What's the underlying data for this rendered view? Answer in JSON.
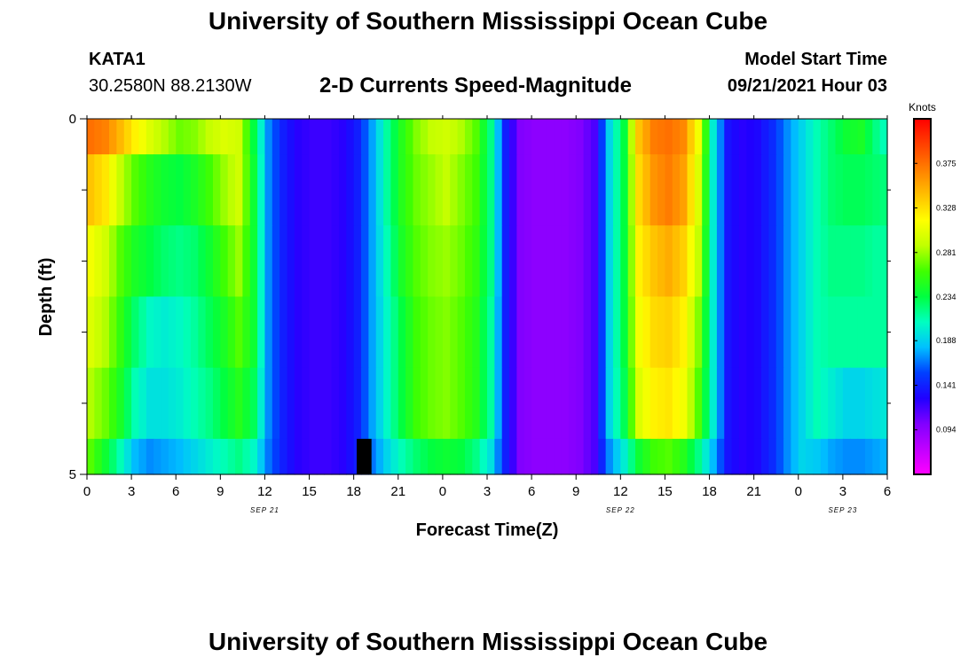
{
  "page": {
    "title_top": "University of Southern Mississippi Ocean Cube",
    "title_bottom": "University of Southern Mississippi Ocean Cube",
    "station": "KATA1",
    "location": "30.2580N  88.2130W",
    "model_start_label": "Model Start Time",
    "model_start_value": "09/21/2021 Hour 03"
  },
  "chart_data": {
    "type": "heatmap",
    "title": "2-D Currents Speed-Magnitude",
    "xlabel": "Forecast Time(Z)",
    "ylabel": "Depth (ft)",
    "colorbar_label": "Knots",
    "x_range_hours": [
      0,
      54
    ],
    "y_range": [
      0,
      5
    ],
    "y_tick_labels": [
      {
        "value": 0,
        "label": "0"
      },
      {
        "value": 5,
        "label": "5"
      }
    ],
    "y_minor_ticks": [
      1,
      2,
      3,
      4
    ],
    "x_tick_labels": [
      "0",
      "3",
      "6",
      "9",
      "12",
      "15",
      "18",
      "21",
      "0",
      "3",
      "6",
      "9",
      "12",
      "15",
      "18",
      "21",
      "0",
      "3",
      "6"
    ],
    "date_labels": [
      {
        "hour": 12,
        "label": "SEP 21"
      },
      {
        "hour": 36,
        "label": "SEP 22"
      },
      {
        "hour": 51,
        "label": "SEP 23"
      }
    ],
    "depth_bands": [
      [
        0,
        0.5
      ],
      [
        0.5,
        1.5
      ],
      [
        1.5,
        2.5
      ],
      [
        2.5,
        3.5
      ],
      [
        3.5,
        4.5
      ],
      [
        4.5,
        5
      ]
    ],
    "hours": [
      0,
      1,
      2,
      3,
      4,
      5,
      6,
      7,
      8,
      9,
      10,
      11,
      12,
      13,
      14,
      15,
      16,
      17,
      18,
      19,
      20,
      21,
      22,
      23,
      24,
      25,
      26,
      27,
      28,
      29,
      30,
      31,
      32,
      33,
      34,
      35,
      36,
      37,
      38,
      39,
      40,
      41,
      42,
      43,
      44,
      45,
      46,
      47,
      48,
      49,
      50,
      51,
      52,
      53,
      54
    ],
    "speed_knots_by_band": [
      [
        0.375,
        0.368,
        0.345,
        0.32,
        0.3,
        0.285,
        0.27,
        0.275,
        0.29,
        0.3,
        0.295,
        0.235,
        0.17,
        0.14,
        0.125,
        0.12,
        0.12,
        0.125,
        0.14,
        0.175,
        0.215,
        0.25,
        0.275,
        0.29,
        0.295,
        0.285,
        0.265,
        0.22,
        0.14,
        0.1,
        0.095,
        0.095,
        0.095,
        0.1,
        0.115,
        0.19,
        0.235,
        0.34,
        0.37,
        0.375,
        0.365,
        0.31,
        0.2,
        0.135,
        0.125,
        0.13,
        0.145,
        0.17,
        0.19,
        0.21,
        0.225,
        0.24,
        0.245,
        0.22,
        0.2
      ],
      [
        0.34,
        0.325,
        0.29,
        0.265,
        0.25,
        0.24,
        0.235,
        0.245,
        0.26,
        0.28,
        0.295,
        0.24,
        0.17,
        0.14,
        0.125,
        0.12,
        0.12,
        0.125,
        0.14,
        0.175,
        0.215,
        0.25,
        0.27,
        0.28,
        0.29,
        0.275,
        0.26,
        0.22,
        0.14,
        0.1,
        0.095,
        0.095,
        0.095,
        0.1,
        0.115,
        0.19,
        0.235,
        0.33,
        0.36,
        0.37,
        0.355,
        0.3,
        0.2,
        0.135,
        0.125,
        0.13,
        0.145,
        0.17,
        0.19,
        0.21,
        0.225,
        0.23,
        0.23,
        0.225,
        0.22
      ],
      [
        0.31,
        0.295,
        0.265,
        0.245,
        0.235,
        0.225,
        0.22,
        0.225,
        0.24,
        0.26,
        0.28,
        0.24,
        0.17,
        0.14,
        0.125,
        0.12,
        0.12,
        0.125,
        0.14,
        0.175,
        0.21,
        0.245,
        0.265,
        0.275,
        0.28,
        0.27,
        0.255,
        0.22,
        0.14,
        0.1,
        0.095,
        0.095,
        0.095,
        0.1,
        0.115,
        0.19,
        0.235,
        0.32,
        0.34,
        0.35,
        0.335,
        0.29,
        0.2,
        0.135,
        0.125,
        0.13,
        0.145,
        0.17,
        0.19,
        0.21,
        0.22,
        0.22,
        0.22,
        0.215,
        0.215
      ],
      [
        0.3,
        0.285,
        0.255,
        0.225,
        0.205,
        0.2,
        0.205,
        0.215,
        0.23,
        0.245,
        0.265,
        0.24,
        0.17,
        0.14,
        0.125,
        0.12,
        0.12,
        0.125,
        0.14,
        0.175,
        0.205,
        0.235,
        0.26,
        0.27,
        0.275,
        0.265,
        0.25,
        0.215,
        0.14,
        0.1,
        0.095,
        0.095,
        0.095,
        0.1,
        0.115,
        0.19,
        0.235,
        0.31,
        0.33,
        0.335,
        0.32,
        0.275,
        0.2,
        0.135,
        0.125,
        0.13,
        0.145,
        0.17,
        0.19,
        0.21,
        0.215,
        0.215,
        0.215,
        0.215,
        0.215
      ],
      [
        0.285,
        0.27,
        0.245,
        0.21,
        0.195,
        0.195,
        0.2,
        0.21,
        0.22,
        0.235,
        0.25,
        0.23,
        0.17,
        0.14,
        0.125,
        0.12,
        0.12,
        0.125,
        0.14,
        0.175,
        0.205,
        0.235,
        0.26,
        0.27,
        0.275,
        0.265,
        0.25,
        0.215,
        0.14,
        0.1,
        0.095,
        0.095,
        0.095,
        0.1,
        0.115,
        0.19,
        0.23,
        0.3,
        0.32,
        0.325,
        0.31,
        0.265,
        0.2,
        0.135,
        0.125,
        0.13,
        0.145,
        0.17,
        0.19,
        0.21,
        0.2,
        0.19,
        0.19,
        0.195,
        0.2
      ],
      [
        0.265,
        0.24,
        0.21,
        0.18,
        0.17,
        0.175,
        0.18,
        0.19,
        0.2,
        0.21,
        0.22,
        0.205,
        0.165,
        0.14,
        0.125,
        0.12,
        0.12,
        0.125,
        0.14,
        0.165,
        0.19,
        0.21,
        0.225,
        0.235,
        0.24,
        0.235,
        0.22,
        0.195,
        0.14,
        0.1,
        0.095,
        0.095,
        0.095,
        0.1,
        0.115,
        0.17,
        0.2,
        0.24,
        0.26,
        0.265,
        0.25,
        0.22,
        0.18,
        0.135,
        0.125,
        0.13,
        0.145,
        0.17,
        0.19,
        0.185,
        0.175,
        0.17,
        0.17,
        0.175,
        0.18
      ]
    ],
    "missing_cell": {
      "hour_start": 18.2,
      "hour_end": 19.2,
      "depth_start": 4.5,
      "depth_end": 5
    },
    "colorbar": {
      "min": 0.047,
      "max": 0.422,
      "tick_labels": [
        "0.375",
        "0.328",
        "0.281",
        "0.234",
        "0.188",
        "0.141",
        "0.094"
      ],
      "colors": [
        "#ff00ff",
        "#c000ff",
        "#8000ff",
        "#2000ff",
        "#0040ff",
        "#00c0ff",
        "#00ffc0",
        "#00ff40",
        "#40ff00",
        "#c0ff00",
        "#ffff00",
        "#ffc000",
        "#ff8000",
        "#ff4000",
        "#ff0000"
      ]
    }
  }
}
